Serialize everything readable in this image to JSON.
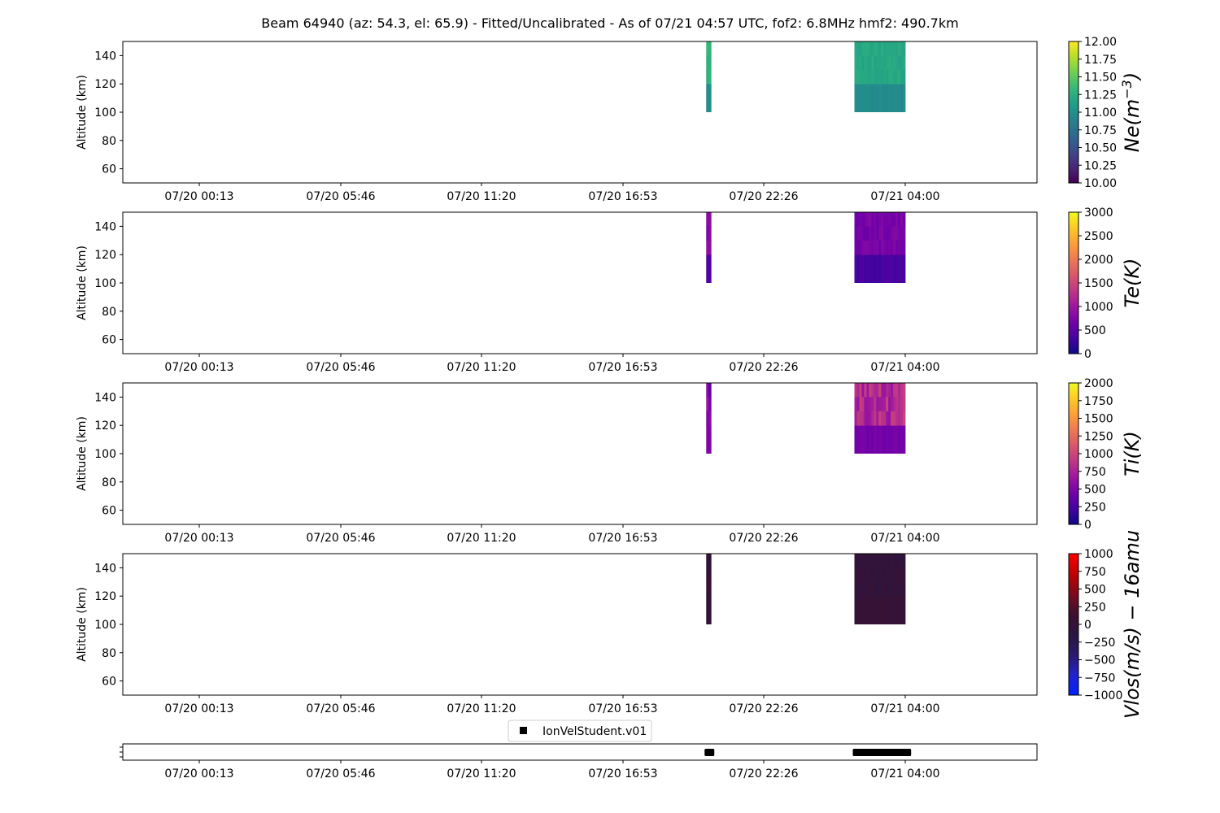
{
  "title": "Beam 64940 (az: 54.3, el: 65.9) - Fitted/Uncalibrated - As of 07/21 04:57 UTC, fof2: 6.8MHz  hmf2: 490.7km",
  "chart_data": [
    {
      "type": "heatmap",
      "name": "ne",
      "ylabel": "Altitude (km)",
      "yticks": [
        60,
        80,
        100,
        120,
        140
      ],
      "ylim": [
        50,
        150
      ],
      "xticks": [
        "07/20 00:13",
        "07/20 05:46",
        "07/20 11:20",
        "07/20 16:53",
        "07/20 22:26",
        "07/21 04:00"
      ],
      "colorbar": {
        "label": "Ne(m⁻³)",
        "label_base": "Ne(m",
        "label_sup": "−3",
        "label_end": ")",
        "range": [
          10.0,
          12.0
        ],
        "ticks": [
          "10.00",
          "10.25",
          "10.50",
          "10.75",
          "11.00",
          "11.25",
          "11.50",
          "11.75",
          "12.00"
        ],
        "colormap": "viridis"
      },
      "blocks": [
        {
          "start": "07/20 20:10",
          "end": "07/20 20:18",
          "alt_range": [
            100,
            150
          ],
          "value_lower": 11.0,
          "value_upper": 11.3
        },
        {
          "start": "07/21 02:00",
          "end": "07/21 04:00",
          "alt_range": [
            100,
            150
          ],
          "value_lower": 10.95,
          "value_upper": 11.2
        }
      ]
    },
    {
      "type": "heatmap",
      "name": "te",
      "ylabel": "Altitude (km)",
      "yticks": [
        60,
        80,
        100,
        120,
        140
      ],
      "ylim": [
        50,
        150
      ],
      "xticks": [
        "07/20 00:13",
        "07/20 05:46",
        "07/20 11:20",
        "07/20 16:53",
        "07/20 22:26",
        "07/21 04:00"
      ],
      "colorbar": {
        "label": "Te(K)",
        "range": [
          0,
          3000
        ],
        "ticks": [
          "0",
          "500",
          "1000",
          "1500",
          "2000",
          "2500",
          "3000"
        ],
        "colormap": "plasma"
      },
      "blocks": [
        {
          "start": "07/20 20:10",
          "end": "07/20 20:18",
          "alt_range": [
            100,
            150
          ],
          "value_lower": 400,
          "value_upper": 800
        },
        {
          "start": "07/21 02:00",
          "end": "07/21 04:00",
          "alt_range": [
            100,
            150
          ],
          "value_lower": 350,
          "value_upper": 700
        }
      ]
    },
    {
      "type": "heatmap",
      "name": "ti",
      "ylabel": "Altitude (km)",
      "yticks": [
        60,
        80,
        100,
        120,
        140
      ],
      "ylim": [
        50,
        150
      ],
      "xticks": [
        "07/20 00:13",
        "07/20 05:46",
        "07/20 11:20",
        "07/20 16:53",
        "07/20 22:26",
        "07/21 04:00"
      ],
      "colorbar": {
        "label": "Ti(K)",
        "range": [
          0,
          2000
        ],
        "ticks": [
          "0",
          "250",
          "500",
          "750",
          "1000",
          "1250",
          "1500",
          "1750",
          "2000"
        ],
        "colormap": "plasma"
      },
      "blocks": [
        {
          "start": "07/20 20:10",
          "end": "07/20 20:18",
          "alt_range": [
            100,
            150
          ],
          "value_lower": 500,
          "value_upper": 550
        },
        {
          "start": "07/21 02:00",
          "end": "07/21 04:00",
          "alt_range": [
            100,
            150
          ],
          "value_lower": 450,
          "value_upper": 800
        }
      ]
    },
    {
      "type": "heatmap",
      "name": "vlos",
      "ylabel": "Altitude (km)",
      "yticks": [
        60,
        80,
        100,
        120,
        140
      ],
      "ylim": [
        50,
        150
      ],
      "xticks": [
        "07/20 00:13",
        "07/20 05:46",
        "07/20 11:20",
        "07/20 16:53",
        "07/20 22:26",
        "07/21 04:00"
      ],
      "colorbar": {
        "label": "Vlos(m/s) − 16amu",
        "range": [
          -1000,
          1000
        ],
        "ticks": [
          "−1000",
          "−750",
          "−500",
          "−250",
          "0",
          "250",
          "500",
          "750",
          "1000"
        ],
        "colormap": "seismic"
      },
      "blocks": [
        {
          "start": "07/20 20:10",
          "end": "07/20 20:18",
          "alt_range": [
            100,
            150
          ],
          "value_lower": 0,
          "value_upper": 0
        },
        {
          "start": "07/21 02:00",
          "end": "07/21 04:00",
          "alt_range": [
            100,
            150
          ],
          "value_lower": 20,
          "value_upper": -20
        }
      ]
    },
    {
      "type": "scatter",
      "name": "availability",
      "xticks": [
        "07/20 00:13",
        "07/20 05:46",
        "07/20 11:20",
        "07/20 16:53",
        "07/20 22:26",
        "07/21 04:00"
      ],
      "legend": {
        "entries": [
          "IonVelStudent.v01"
        ],
        "placement": "top-center"
      },
      "marker": "square",
      "segments": [
        {
          "start": "07/20 20:10",
          "end": "07/20 20:18"
        },
        {
          "start": "07/21 02:00",
          "end": "07/21 04:10"
        }
      ]
    }
  ]
}
